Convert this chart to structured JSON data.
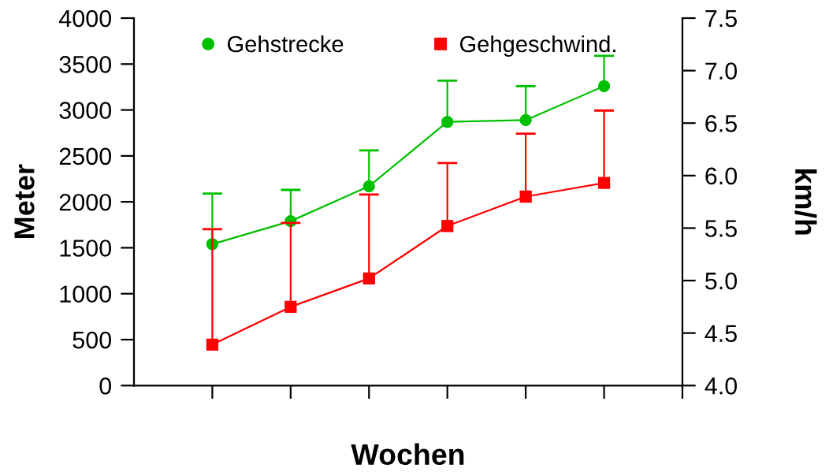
{
  "chart_data": {
    "type": "line",
    "xlabel": "Wochen",
    "ylabel": "Meter",
    "y2label": "km/h",
    "categories": [
      null,
      null,
      null,
      null,
      null,
      null
    ],
    "series": [
      {
        "name": "Gehstrecke",
        "color": "#00c000",
        "marker": "circle",
        "values": [
          1540,
          1790,
          2170,
          2870,
          2890,
          3260
        ],
        "errors": [
          [
            1540,
            2090
          ],
          [
            1790,
            2130
          ],
          [
            2170,
            2560
          ],
          [
            2870,
            3320
          ],
          [
            2890,
            3260
          ],
          [
            3260,
            3590
          ]
        ]
      },
      {
        "name": "Gehgeschwind.",
        "color": "#ff0000",
        "marker": "square",
        "axis": "y2",
        "values": [
          4.39,
          4.75,
          5.02,
          5.52,
          5.8,
          5.93
        ],
        "errors": [
          [
            4.39,
            5.49
          ],
          [
            4.75,
            5.55
          ],
          [
            5.02,
            5.82
          ],
          [
            5.52,
            6.12
          ],
          [
            5.8,
            6.4
          ],
          [
            5.93,
            6.62
          ]
        ]
      }
    ],
    "ylim": [
      0,
      4000
    ],
    "yticks": [
      0,
      500,
      1000,
      1500,
      2000,
      2500,
      3000,
      3500,
      4000
    ],
    "y2lim": [
      4.0,
      7.5
    ],
    "y2ticks": [
      {
        "value": 4,
        "label": "4.0"
      },
      4.5,
      {
        "value": 5,
        "label": "5.0"
      },
      5.5,
      {
        "value": 6,
        "label": "6.0"
      },
      6.5,
      {
        "value": 7,
        "label": "7.0"
      },
      7.5
    ],
    "legend": "top",
    "grid": false,
    "tick_labels": "y",
    "line_style": "solid"
  }
}
